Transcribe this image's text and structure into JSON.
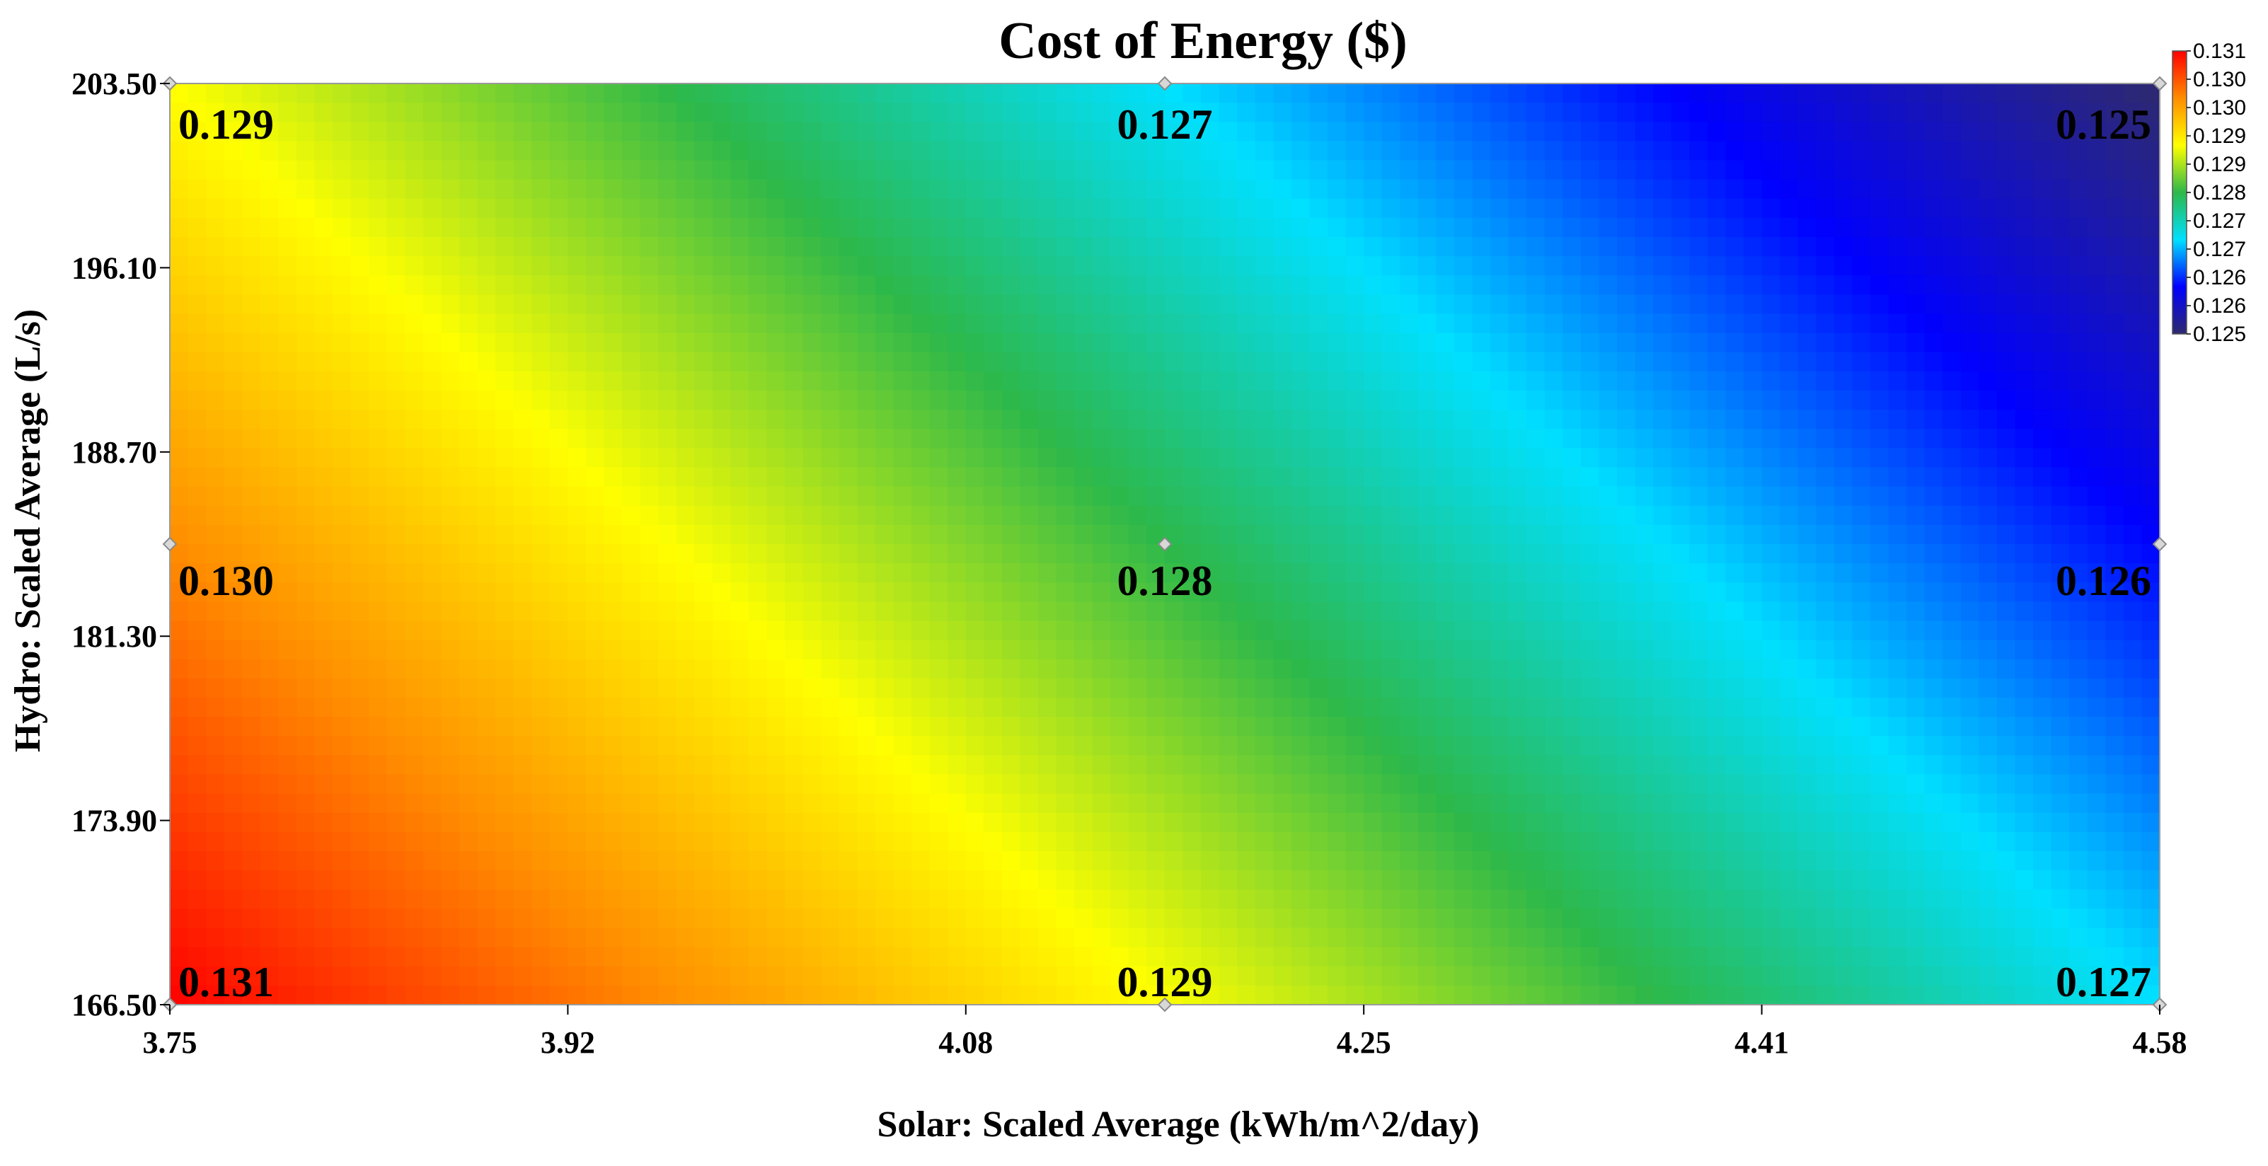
{
  "chart_data": {
    "type": "heatmap",
    "title": "Cost of Energy ($)",
    "xlabel": "Solar: Scaled Average (kWh/m^2/day)",
    "ylabel": "Hydro: Scaled Average (L/s)",
    "xlim": [
      3.75,
      4.58
    ],
    "ylim": [
      166.5,
      203.5
    ],
    "x_ticks": [
      "3.75",
      "3.92",
      "4.08",
      "4.25",
      "4.41",
      "4.58"
    ],
    "y_ticks": [
      "203.50",
      "196.10",
      "188.70",
      "181.30",
      "173.90",
      "166.50"
    ],
    "points": [
      {
        "x": 3.75,
        "y": 203.5,
        "value": 0.129,
        "label": "0.129"
      },
      {
        "x": 4.165,
        "y": 203.5,
        "value": 0.127,
        "label": "0.127"
      },
      {
        "x": 4.58,
        "y": 203.5,
        "value": 0.125,
        "label": "0.125"
      },
      {
        "x": 3.75,
        "y": 185.0,
        "value": 0.13,
        "label": "0.130"
      },
      {
        "x": 4.165,
        "y": 185.0,
        "value": 0.128,
        "label": "0.128"
      },
      {
        "x": 4.58,
        "y": 185.0,
        "value": 0.126,
        "label": "0.126"
      },
      {
        "x": 3.75,
        "y": 166.5,
        "value": 0.131,
        "label": "0.131"
      },
      {
        "x": 4.165,
        "y": 166.5,
        "value": 0.129,
        "label": "0.129"
      },
      {
        "x": 4.58,
        "y": 166.5,
        "value": 0.127,
        "label": "0.127"
      }
    ],
    "colorbar": {
      "min": 0.125,
      "max": 0.131,
      "ticks": [
        "0.131",
        "0.130",
        "0.130",
        "0.129",
        "0.129",
        "0.128",
        "0.127",
        "0.127",
        "0.126",
        "0.126",
        "0.125"
      ],
      "colors": [
        "#2e2a6e",
        "#0000ff",
        "#00e0ff",
        "#2db84a",
        "#ffff00",
        "#ff8c00",
        "#ff0000"
      ]
    }
  }
}
